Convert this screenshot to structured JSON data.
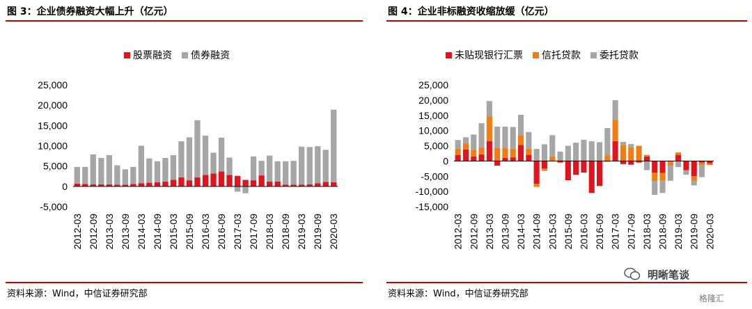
{
  "left_title": "图 3：企业债券融资大幅上升（亿元）",
  "right_title": "图 4：企业非标融资收缩放缓（亿元）",
  "left_source": "资料来源：Wind，中信证券研究部",
  "right_source": "资料来源：Wind，中信证券研究部",
  "watermark": "明晰笔谈",
  "corner_logo": "格隆汇",
  "colors": {
    "red": "#e0141e",
    "gray": "#a6a6a6",
    "orange": "#f07d14",
    "rule": "#c00000"
  },
  "chart_data": [
    {
      "type": "bar",
      "stacked": true,
      "title": "图 3：企业债券融资大幅上升（亿元）",
      "xlabel": "",
      "ylabel": "",
      "ylim": [
        -5000,
        25000
      ],
      "yticks": [
        "25,000",
        "20,000",
        "15,000",
        "10,000",
        "5,000",
        "0",
        "-5,000"
      ],
      "ytick_values": [
        25000,
        20000,
        15000,
        10000,
        5000,
        0,
        -5000
      ],
      "legend": "top-center",
      "x": [
        "2012-03",
        "2012-06",
        "2012-09",
        "2012-12",
        "2013-03",
        "2013-06",
        "2013-09",
        "2013-12",
        "2014-03",
        "2014-06",
        "2014-09",
        "2014-12",
        "2015-03",
        "2015-06",
        "2015-09",
        "2015-12",
        "2016-03",
        "2016-06",
        "2016-09",
        "2016-12",
        "2017-03",
        "2017-06",
        "2017-09",
        "2017-12",
        "2018-03",
        "2018-06",
        "2018-09",
        "2018-12",
        "2019-03",
        "2019-06",
        "2019-09",
        "2019-12",
        "2020-03"
      ],
      "xticks": [
        "2012-03",
        "2012-09",
        "2013-03",
        "2013-09",
        "2014-03",
        "2014-09",
        "2015-03",
        "2015-09",
        "2016-03",
        "2016-09",
        "2017-03",
        "2017-09",
        "2018-03",
        "2018-09",
        "2019-03",
        "2019-09",
        "2020-03"
      ],
      "series": [
        {
          "name": "股票融资",
          "color": "#e0141e",
          "values": [
            700,
            600,
            500,
            500,
            500,
            400,
            400,
            600,
            800,
            900,
            1000,
            1200,
            1600,
            2200,
            1500,
            2200,
            2800,
            3200,
            3700,
            2800,
            2600,
            1600,
            1500,
            2700,
            1200,
            1200,
            400,
            400,
            400,
            500,
            800,
            1100,
            1000
          ]
        },
        {
          "name": "债券融资",
          "color": "#a6a6a6",
          "values": [
            4100,
            4200,
            7400,
            6500,
            7200,
            4800,
            3800,
            4200,
            9200,
            6000,
            5200,
            5800,
            6100,
            8900,
            10600,
            14100,
            9700,
            5100,
            8300,
            4300,
            -1300,
            -1700,
            5900,
            3600,
            6400,
            5000,
            5800,
            5900,
            9400,
            9200,
            9100,
            7900,
            17900
          ]
        }
      ]
    },
    {
      "type": "bar",
      "stacked": true,
      "title": "图 4：企业非标融资收缩放缓（亿元）",
      "xlabel": "",
      "ylabel": "",
      "ylim": [
        -15000,
        25000
      ],
      "yticks": [
        "25,000",
        "20,000",
        "15,000",
        "10,000",
        "5,000",
        "0",
        "-5,000",
        "-10,000",
        "-15,000"
      ],
      "ytick_values": [
        25000,
        20000,
        15000,
        10000,
        5000,
        0,
        -5000,
        -10000,
        -15000
      ],
      "legend": "top-center",
      "x": [
        "2012-03",
        "2012-06",
        "2012-09",
        "2012-12",
        "2013-03",
        "2013-06",
        "2013-09",
        "2013-12",
        "2014-03",
        "2014-06",
        "2014-09",
        "2014-12",
        "2015-03",
        "2015-06",
        "2015-09",
        "2015-12",
        "2016-03",
        "2016-06",
        "2016-09",
        "2016-12",
        "2017-03",
        "2017-06",
        "2017-09",
        "2017-12",
        "2018-03",
        "2018-06",
        "2018-09",
        "2018-12",
        "2019-03",
        "2019-06",
        "2019-09",
        "2019-12",
        "2020-03"
      ],
      "xticks": [
        "2012-03",
        "2012-09",
        "2013-03",
        "2013-09",
        "2014-03",
        "2014-09",
        "2015-03",
        "2015-09",
        "2016-03",
        "2016-09",
        "2017-03",
        "2017-09",
        "2018-03",
        "2018-09",
        "2019-03",
        "2019-09",
        "2020-03"
      ],
      "series": [
        {
          "name": "未贴现银行汇票",
          "color": "#e0141e",
          "values": [
            2000,
            3800,
            1500,
            2200,
            6500,
            -1500,
            1000,
            1200,
            5300,
            2000,
            -7500,
            -2500,
            0,
            -500,
            -6300,
            -4500,
            -3800,
            -10500,
            -8200,
            -200,
            6500,
            -1000,
            -1200,
            -500,
            1500,
            -3800,
            -3900,
            -200,
            2000,
            -3000,
            -5000,
            -500,
            -800
          ]
        },
        {
          "name": "信托贷款",
          "color": "#f07d14",
          "values": [
            2000,
            2000,
            2200,
            2200,
            8200,
            4300,
            3300,
            2800,
            3200,
            2000,
            -1000,
            -700,
            1500,
            300,
            0,
            0,
            0,
            0,
            0,
            1800,
            7000,
            5300,
            4500,
            5000,
            500,
            -2800,
            -2600,
            -1300,
            800,
            0,
            -1500,
            -800,
            -500
          ]
        },
        {
          "name": "委托贷款",
          "color": "#a6a6a6",
          "values": [
            2900,
            2000,
            5000,
            8000,
            5000,
            7000,
            7000,
            7200,
            6700,
            5500,
            4000,
            5500,
            7000,
            2800,
            5000,
            6000,
            7000,
            6500,
            6200,
            9000,
            6500,
            1000,
            1100,
            0,
            -3000,
            -4500,
            -4000,
            -5000,
            -2000,
            -1500,
            -1500,
            -4000,
            0
          ]
        }
      ]
    }
  ]
}
